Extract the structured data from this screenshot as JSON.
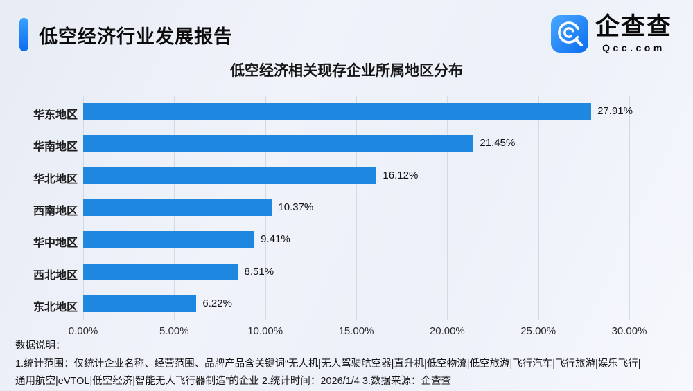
{
  "header": {
    "title": "低空经济行业发展报告",
    "logo": {
      "name": "企查查",
      "domain": "Qcc.com"
    }
  },
  "chart_data": {
    "type": "bar",
    "orientation": "horizontal",
    "title": "低空经济相关现存企业所属地区分布",
    "categories": [
      "华东地区",
      "华南地区",
      "华北地区",
      "西南地区",
      "华中地区",
      "西北地区",
      "东北地区"
    ],
    "values": [
      27.91,
      21.45,
      16.12,
      10.37,
      9.41,
      8.51,
      6.22
    ],
    "value_labels": [
      "27.91%",
      "21.45%",
      "16.12%",
      "10.37%",
      "9.41%",
      "8.51%",
      "6.22%"
    ],
    "x_ticks": [
      "0.00%",
      "5.00%",
      "10.00%",
      "15.00%",
      "20.00%",
      "25.00%",
      "30.00%"
    ],
    "xlim": [
      0,
      30
    ],
    "grid": true,
    "legend": "none",
    "bar_color": "#1e87e0",
    "gridline_color": "#d4d9e3"
  },
  "footer": {
    "lines": [
      "数据说明：",
      "1.统计范围：仅统计企业名称、经营范围、品牌产品含关键词“无人机|无人驾驶航空器|直升机|低空物流|低空旅游|飞行汽车|飞行旅游|娱乐飞行|",
      "通用航空|eVTOL|低空经济|智能无人飞行器制造”的企业  2.统计时间：2026/1/4  3.数据来源：企查查"
    ]
  },
  "colors": {
    "accent_top": "#35a2ff",
    "accent_bottom": "#0f6bee",
    "background": "#eef1f8",
    "text": "#111111"
  }
}
